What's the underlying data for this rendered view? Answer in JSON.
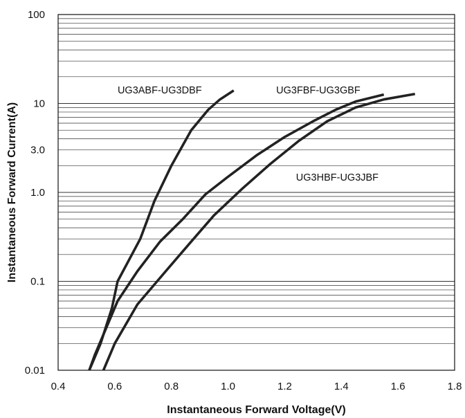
{
  "chart_data": {
    "type": "line",
    "title": "",
    "xlabel": "Instantaneous Forward Voltage(V)",
    "ylabel": "Instantaneous Forward Current(A)",
    "xscale": "linear",
    "yscale": "log",
    "xlim": [
      0.4,
      1.8
    ],
    "ylim": [
      0.01,
      100
    ],
    "grid": "horizontal log gridlines only",
    "x_ticks": [
      "0.4",
      "0.6",
      "0.8",
      "1.0",
      "1.2",
      "1.4",
      "1.6",
      "1.8"
    ],
    "y_ticks": [
      {
        "value": 0.01,
        "label": "0.01"
      },
      {
        "value": 0.1,
        "label": "0.1"
      },
      {
        "value": 1,
        "label": "1.0"
      },
      {
        "value": 3,
        "label": "3.0"
      },
      {
        "value": 10,
        "label": "10"
      },
      {
        "value": 100,
        "label": "100"
      }
    ],
    "series": [
      {
        "name": "UG3ABF-UG3DBF",
        "points": [
          [
            0.51,
            0.01
          ],
          [
            0.55,
            0.02
          ],
          [
            0.59,
            0.05
          ],
          [
            0.61,
            0.1
          ],
          [
            0.69,
            0.3
          ],
          [
            0.74,
            0.8
          ],
          [
            0.8,
            2.0
          ],
          [
            0.87,
            5.0
          ],
          [
            0.93,
            8.5
          ],
          [
            0.97,
            11
          ],
          [
            1.02,
            14
          ]
        ]
      },
      {
        "name": "UG3FBF-UG3GBF",
        "points": [
          [
            0.51,
            0.01
          ],
          [
            0.53,
            0.015
          ],
          [
            0.57,
            0.03
          ],
          [
            0.61,
            0.06
          ],
          [
            0.68,
            0.13
          ],
          [
            0.76,
            0.28
          ],
          [
            0.84,
            0.5
          ],
          [
            0.92,
            0.95
          ],
          [
            1.0,
            1.5
          ],
          [
            1.1,
            2.6
          ],
          [
            1.2,
            4.2
          ],
          [
            1.3,
            6.3
          ],
          [
            1.38,
            8.5
          ],
          [
            1.45,
            10.5
          ],
          [
            1.55,
            12.6
          ]
        ]
      },
      {
        "name": "UG3HBF-UG3JBF",
        "points": [
          [
            0.56,
            0.01
          ],
          [
            0.6,
            0.02
          ],
          [
            0.68,
            0.055
          ],
          [
            0.78,
            0.13
          ],
          [
            0.87,
            0.28
          ],
          [
            0.95,
            0.55
          ],
          [
            1.05,
            1.1
          ],
          [
            1.15,
            2.1
          ],
          [
            1.25,
            3.8
          ],
          [
            1.35,
            6.3
          ],
          [
            1.45,
            9.0
          ],
          [
            1.55,
            11.1
          ],
          [
            1.66,
            12.8
          ]
        ]
      }
    ],
    "labels": [
      {
        "text": "UG3ABF-UG3DBF",
        "x": 0.61,
        "y": 13
      },
      {
        "text": "UG3FBF-UG3GBF",
        "x": 1.17,
        "y": 13
      },
      {
        "text": "UG3HBF-UG3JBF",
        "x": 1.24,
        "y": 1.36
      }
    ],
    "colors": {
      "line": "#222222",
      "grid": "#333333",
      "text": "#111111"
    }
  }
}
